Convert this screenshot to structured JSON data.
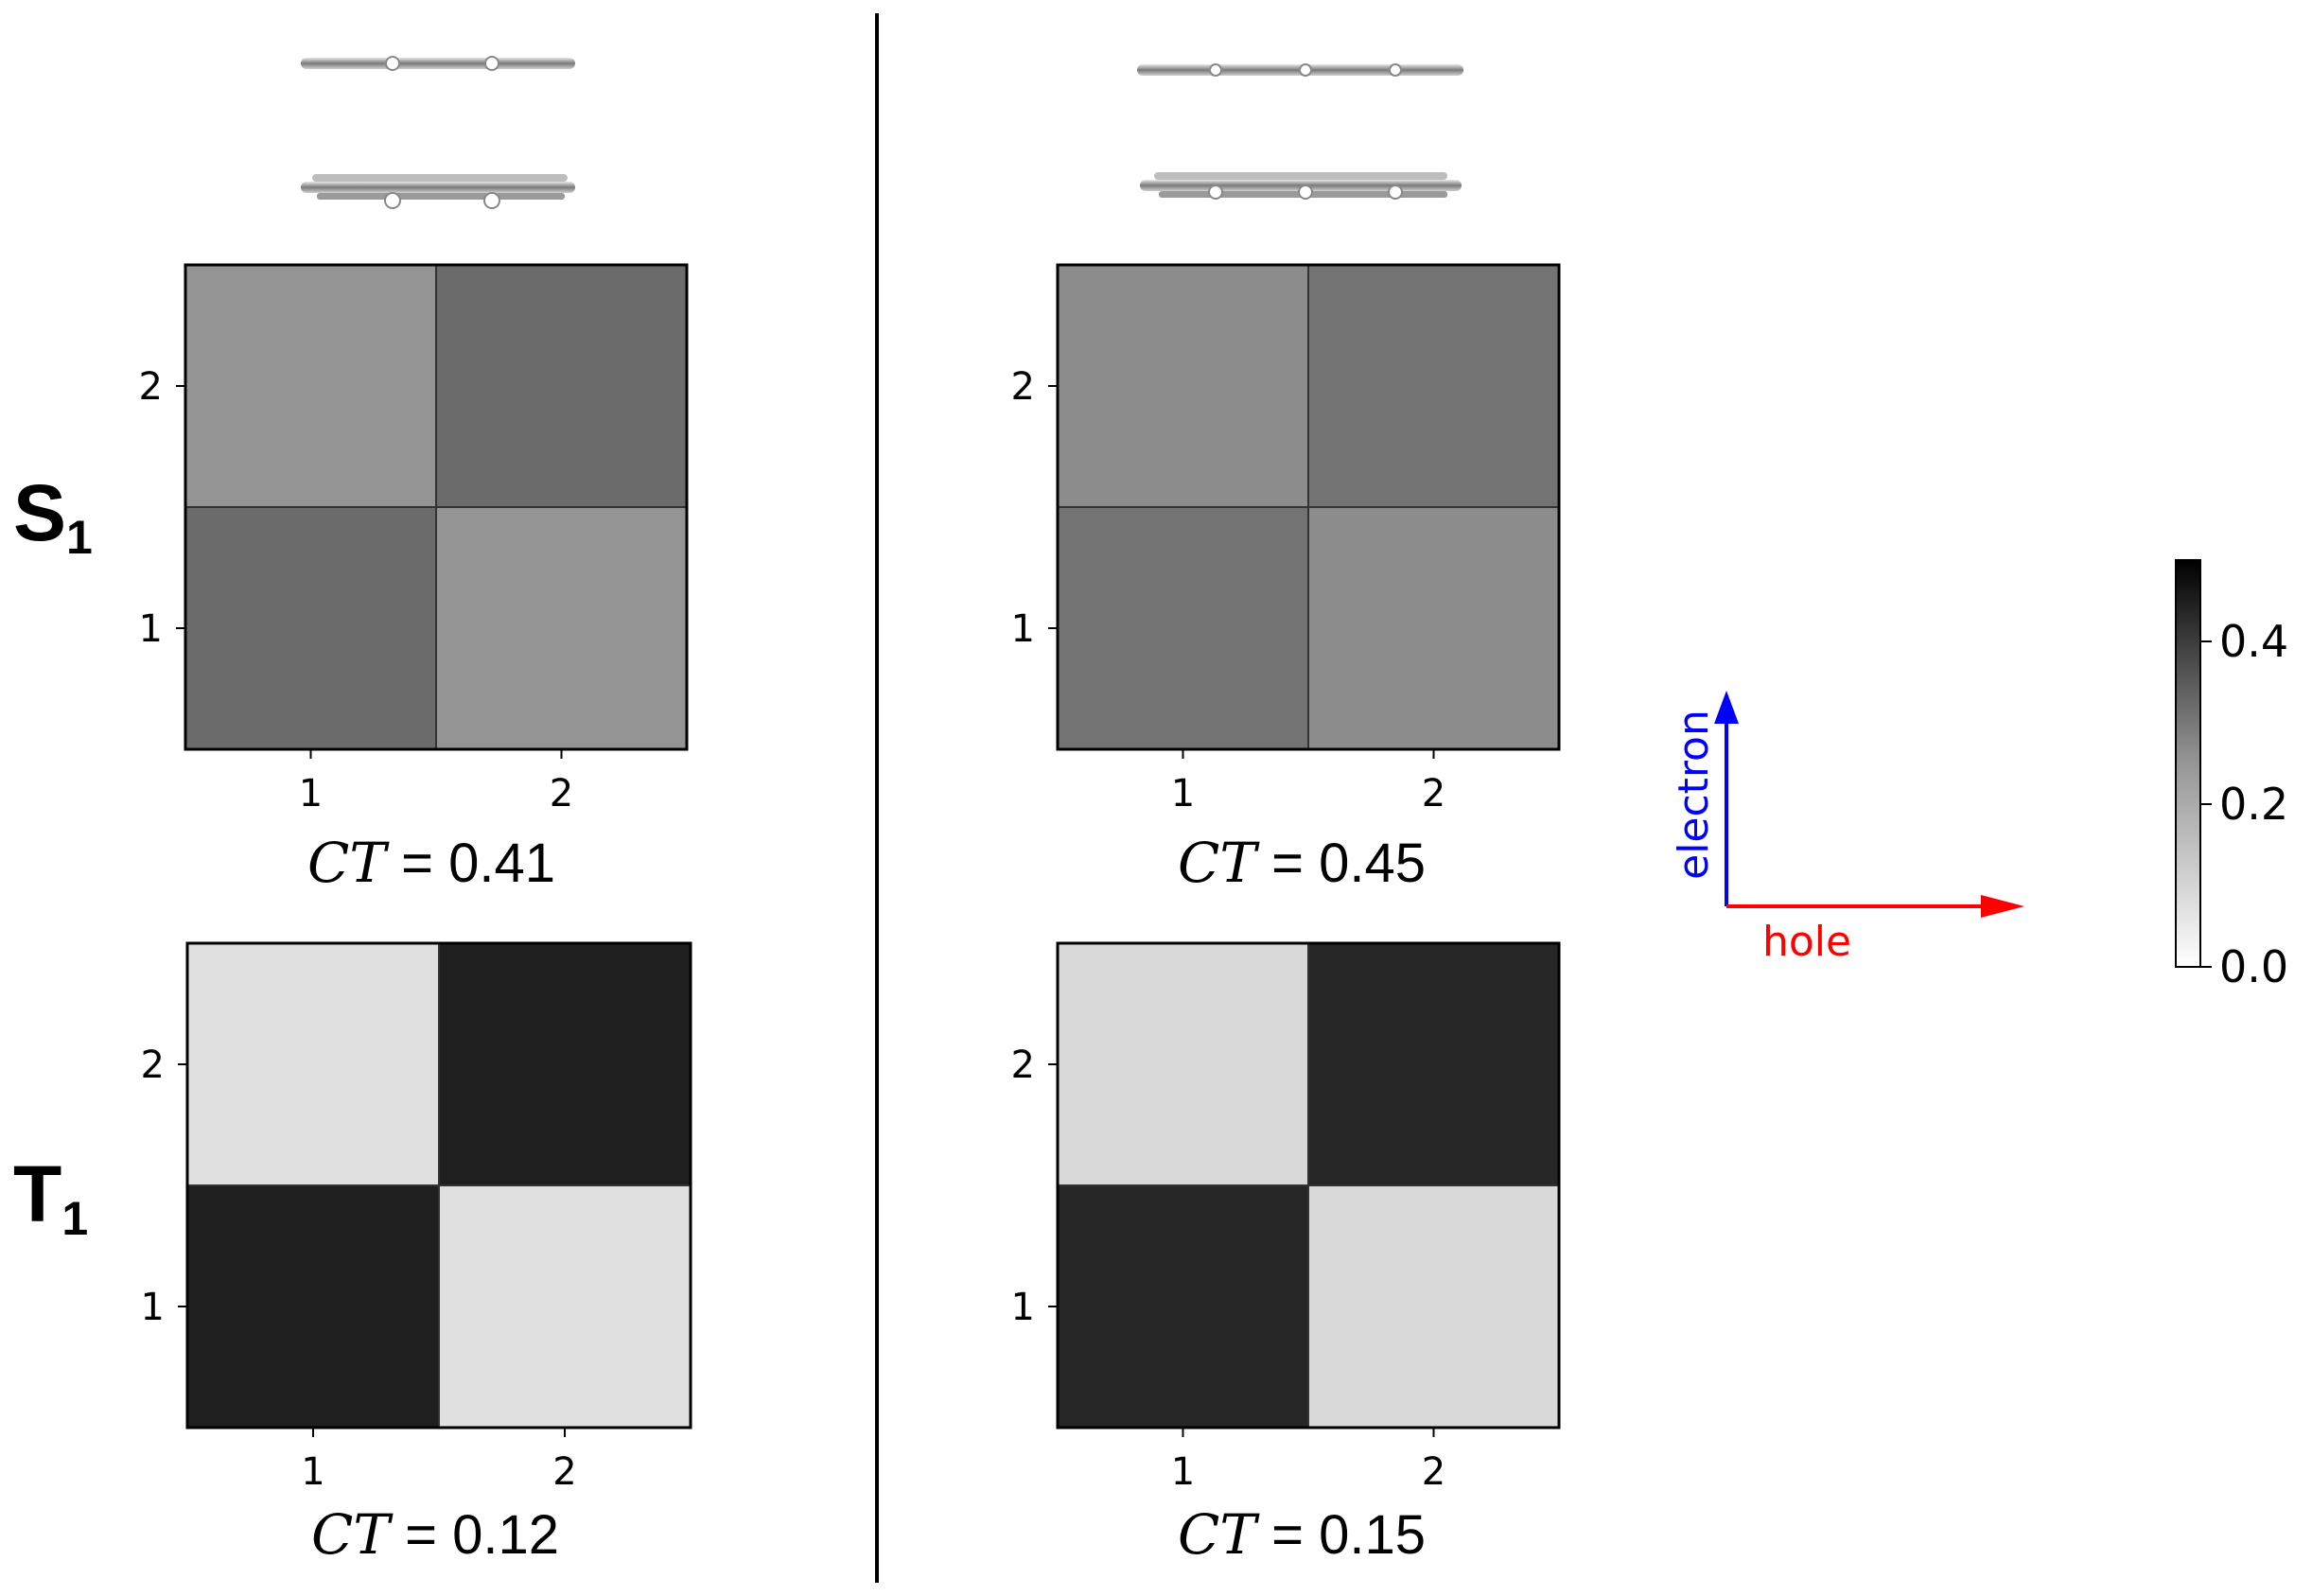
{
  "state_labels": [
    {
      "main": "S",
      "sub": "1"
    },
    {
      "main": "T",
      "sub": "1"
    }
  ],
  "chart_data": [
    {
      "type": "heatmap",
      "panel": "S1 left",
      "x": [
        1,
        2
      ],
      "y": [
        1,
        2
      ],
      "xticks": [
        "1",
        "2"
      ],
      "yticks": [
        "1",
        "2"
      ],
      "values": [
        [
          0.29,
          0.21
        ],
        [
          0.21,
          0.29
        ]
      ],
      "annotation": {
        "symbol": "CT",
        "text": " = 0.41"
      }
    },
    {
      "type": "heatmap",
      "panel": "S1 right",
      "x": [
        1,
        2
      ],
      "y": [
        1,
        2
      ],
      "xticks": [
        "1",
        "2"
      ],
      "yticks": [
        "1",
        "2"
      ],
      "values": [
        [
          0.275,
          0.225
        ],
        [
          0.225,
          0.275
        ]
      ],
      "annotation": {
        "symbol": "CT",
        "text": " = 0.45"
      }
    },
    {
      "type": "heatmap",
      "panel": "T1 left",
      "x": [
        1,
        2
      ],
      "y": [
        1,
        2
      ],
      "xticks": [
        "1",
        "2"
      ],
      "yticks": [
        "1",
        "2"
      ],
      "values": [
        [
          0.44,
          0.06
        ],
        [
          0.06,
          0.44
        ]
      ],
      "annotation": {
        "symbol": "CT",
        "text": " = 0.12"
      }
    },
    {
      "type": "heatmap",
      "panel": "T1 right",
      "x": [
        1,
        2
      ],
      "y": [
        1,
        2
      ],
      "xticks": [
        "1",
        "2"
      ],
      "yticks": [
        "1",
        "2"
      ],
      "values": [
        [
          0.425,
          0.075
        ],
        [
          0.075,
          0.425
        ]
      ],
      "annotation": {
        "symbol": "CT",
        "text": " = 0.15"
      }
    }
  ],
  "colorbar": {
    "range": [
      0.0,
      0.5
    ],
    "ticks": [
      {
        "value": 0.0,
        "label": "0.0"
      },
      {
        "value": 0.2,
        "label": "0.2"
      },
      {
        "value": 0.4,
        "label": "0.4"
      }
    ],
    "colormap": "Greys"
  },
  "axes_legend": {
    "x_label": "hole",
    "x_color": "#ff0000",
    "y_label": "electron",
    "y_color": "#0000ff"
  },
  "colors": {
    "divider": "#000000",
    "cell_edge": "#333333"
  }
}
